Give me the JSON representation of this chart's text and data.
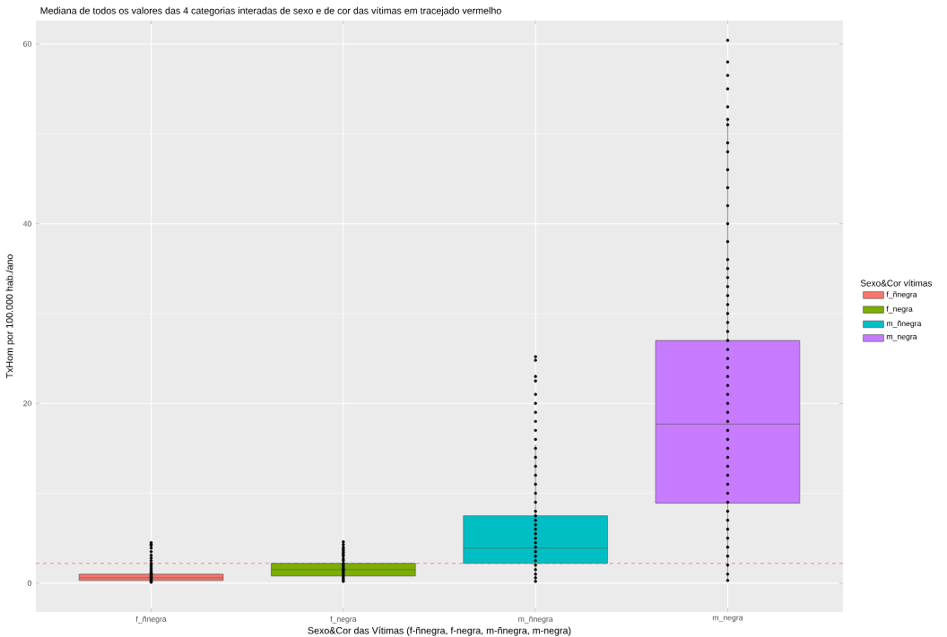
{
  "chart_data": {
    "type": "box",
    "title": "Mediana de todos os valores das 4 categorias interadas de sexo e de cor das vítimas em tracejado vermelho",
    "xlabel": "Sexo&Cor das Vítimas (f-ñnegra, f-negra, m-ñnegra, m-negra)",
    "ylabel": "TxHom por 100.000 hab./ano",
    "legend_title": "Sexo&Cor vítimas",
    "categories": [
      "f_ñnegra",
      "f_negra",
      "m_ñnegra",
      "m_negra"
    ],
    "series": [
      {
        "name": "f_ñnegra",
        "color": "#f8766d",
        "boxes": [
          {
            "low": 0.1,
            "q1": 0.3,
            "median": 0.6,
            "q3": 1.0,
            "high": 2.0
          },
          null,
          null,
          null
        ]
      },
      {
        "name": "f_negra",
        "color": "#7cae00",
        "boxes": [
          null,
          {
            "low": 0.2,
            "q1": 0.8,
            "median": 1.5,
            "q3": 2.2,
            "high": 4.3
          },
          null,
          null
        ]
      },
      {
        "name": "m_ñnegra",
        "color": "#00bfc4",
        "boxes": [
          null,
          null,
          {
            "low": 0.2,
            "q1": 2.2,
            "median": 3.9,
            "q3": 7.5,
            "high": 15.4
          },
          null
        ]
      },
      {
        "name": "m_negra",
        "color": "#c77cff",
        "boxes": [
          null,
          null,
          null,
          {
            "low": 0.3,
            "q1": 8.9,
            "median": 17.7,
            "q3": 27.0,
            "high": 51.6
          }
        ]
      },
      {
        "type": "scatter",
        "color": "#000000",
        "marker": "circle",
        "x": [
          "f_ñnegra",
          "f_ñnegra",
          "f_ñnegra",
          "f_ñnegra",
          "f_ñnegra",
          "f_ñnegra",
          "f_ñnegra",
          "f_ñnegra",
          "f_ñnegra",
          "f_ñnegra",
          "f_ñnegra",
          "f_ñnegra",
          "f_ñnegra",
          "f_ñnegra",
          "f_ñnegra",
          "f_ñnegra",
          "f_ñnegra",
          "f_ñnegra",
          "f_ñnegra",
          "f_ñnegra",
          "f_ñnegra",
          "f_ñnegra",
          "f_ñnegra",
          "f_ñnegra",
          "f_ñnegra",
          "f_negra",
          "f_negra",
          "f_negra",
          "f_negra",
          "f_negra",
          "f_negra",
          "f_negra",
          "f_negra",
          "f_negra",
          "f_negra",
          "f_negra",
          "f_negra",
          "f_negra",
          "f_negra",
          "f_negra",
          "f_negra",
          "f_negra",
          "f_negra",
          "f_negra",
          "f_negra",
          "f_negra",
          "f_negra",
          "m_ñnegra",
          "m_ñnegra",
          "m_ñnegra",
          "m_ñnegra",
          "m_ñnegra",
          "m_ñnegra",
          "m_ñnegra",
          "m_ñnegra",
          "m_ñnegra",
          "m_ñnegra",
          "m_ñnegra",
          "m_ñnegra",
          "m_ñnegra",
          "m_ñnegra",
          "m_ñnegra",
          "m_ñnegra",
          "m_ñnegra",
          "m_ñnegra",
          "m_ñnegra",
          "m_ñnegra",
          "m_ñnegra",
          "m_ñnegra",
          "m_ñnegra",
          "m_ñnegra",
          "m_ñnegra",
          "m_ñnegra",
          "m_ñnegra",
          "m_ñnegra",
          "m_ñnegra",
          "m_ñnegra",
          "m_ñnegra",
          "m_ñnegra",
          "m_ñnegra",
          "m_ñnegra",
          "m_negra",
          "m_negra",
          "m_negra",
          "m_negra",
          "m_negra",
          "m_negra",
          "m_negra",
          "m_negra",
          "m_negra",
          "m_negra",
          "m_negra",
          "m_negra",
          "m_negra",
          "m_negra",
          "m_negra",
          "m_negra",
          "m_negra",
          "m_negra",
          "m_negra",
          "m_negra",
          "m_negra",
          "m_negra",
          "m_negra",
          "m_negra",
          "m_negra",
          "m_negra",
          "m_negra",
          "m_negra",
          "m_negra",
          "m_negra",
          "m_negra",
          "m_negra",
          "m_negra",
          "m_negra",
          "m_negra",
          "m_negra",
          "m_negra",
          "m_negra",
          "m_negra",
          "m_negra",
          "m_negra",
          "m_negra",
          "m_negra",
          "m_negra",
          "m_negra",
          "m_negra",
          "m_negra",
          "m_negra",
          "m_negra",
          "m_negra",
          "m_negra"
        ],
        "values": [
          0.1,
          0.2,
          0.3,
          0.4,
          0.5,
          0.6,
          0.7,
          0.8,
          0.9,
          1.0,
          1.1,
          1.2,
          1.4,
          1.6,
          1.8,
          2.0,
          2.2,
          2.5,
          2.8,
          3.1,
          3.5,
          3.9,
          4.2,
          4.3,
          4.5,
          0.2,
          0.4,
          0.6,
          0.8,
          1.0,
          1.2,
          1.4,
          1.5,
          1.6,
          1.8,
          2.0,
          2.2,
          2.5,
          2.7,
          3.0,
          3.2,
          3.4,
          3.6,
          3.8,
          4.0,
          4.3,
          4.6,
          0.2,
          0.6,
          1.0,
          1.5,
          2.0,
          2.5,
          3.0,
          3.5,
          4.0,
          4.5,
          5.0,
          5.5,
          6.0,
          6.5,
          7.0,
          7.5,
          8.0,
          9.0,
          10,
          11,
          12,
          13,
          14,
          15,
          16,
          17,
          18,
          19,
          20,
          21,
          22.5,
          23,
          24.8,
          25.2,
          0.3,
          1,
          2,
          3,
          4,
          5,
          6,
          7,
          8,
          9,
          10,
          11,
          12,
          13,
          14,
          15,
          16,
          17,
          18,
          19,
          20,
          21,
          22,
          23,
          24,
          25,
          26,
          27,
          28,
          29,
          30,
          31,
          32,
          33,
          34,
          35,
          36,
          38,
          40,
          42,
          44,
          46,
          48,
          49,
          51,
          51.6,
          53,
          55,
          56.5,
          58,
          60.4
        ]
      }
    ],
    "ref_lines": [
      {
        "axis": "y",
        "value": 2.2,
        "color": "#e06666",
        "line_style": "dashed"
      }
    ],
    "ylim": [
      -3.2,
      62.6
    ],
    "yticks": [
      0,
      20,
      40,
      60
    ],
    "grid": true,
    "legend": "right"
  }
}
